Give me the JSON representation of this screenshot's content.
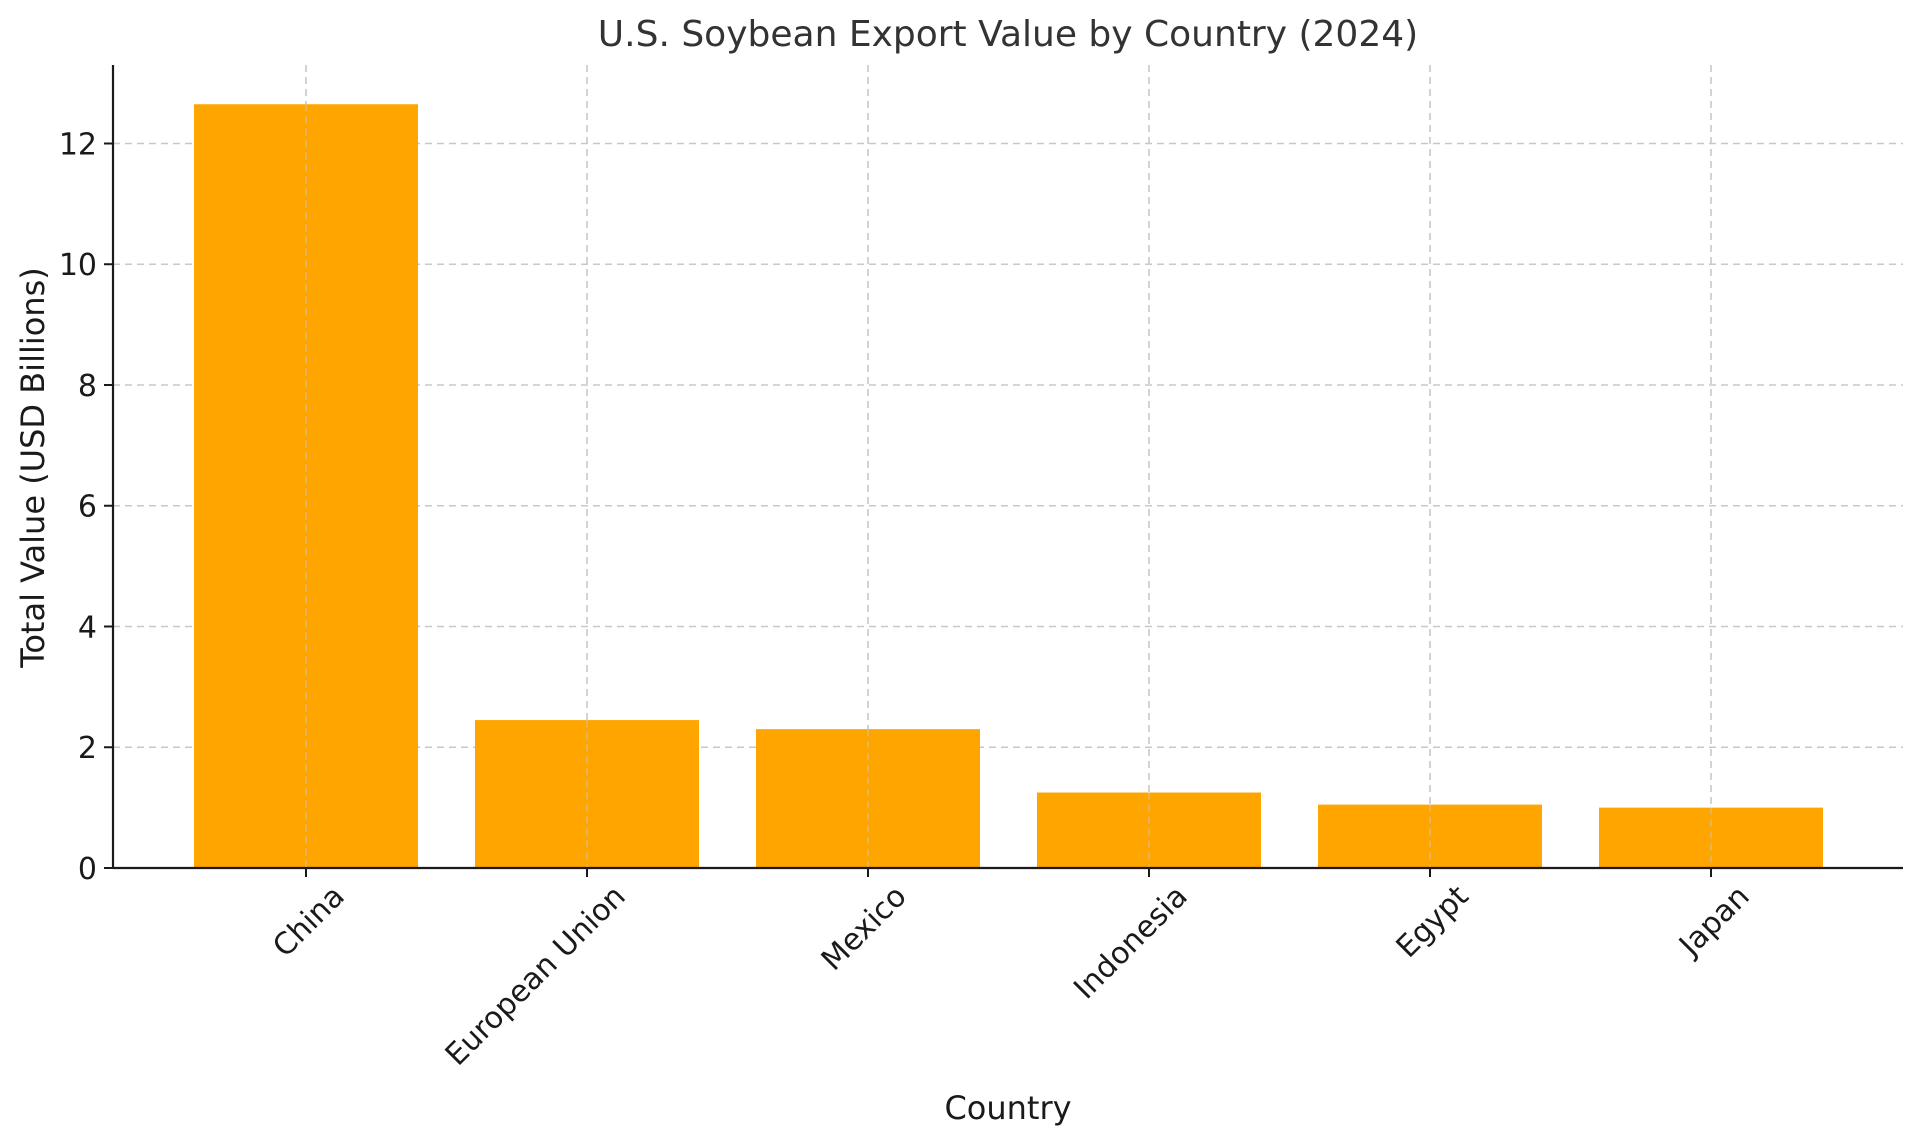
{
  "chart_data": {
    "type": "bar",
    "title": "U.S. Soybean Export Value by Country (2024)",
    "xlabel": "Country",
    "ylabel": "Total Value (USD Billions)",
    "categories": [
      "China",
      "European Union",
      "Mexico",
      "Indonesia",
      "Egypt",
      "Japan"
    ],
    "values": [
      12.65,
      2.45,
      2.3,
      1.25,
      1.05,
      1.0
    ],
    "ylim": [
      0,
      13.3
    ],
    "yticks": [
      0,
      2,
      4,
      6,
      8,
      10,
      12
    ],
    "grid": true,
    "bar_color": "#FFA500"
  }
}
